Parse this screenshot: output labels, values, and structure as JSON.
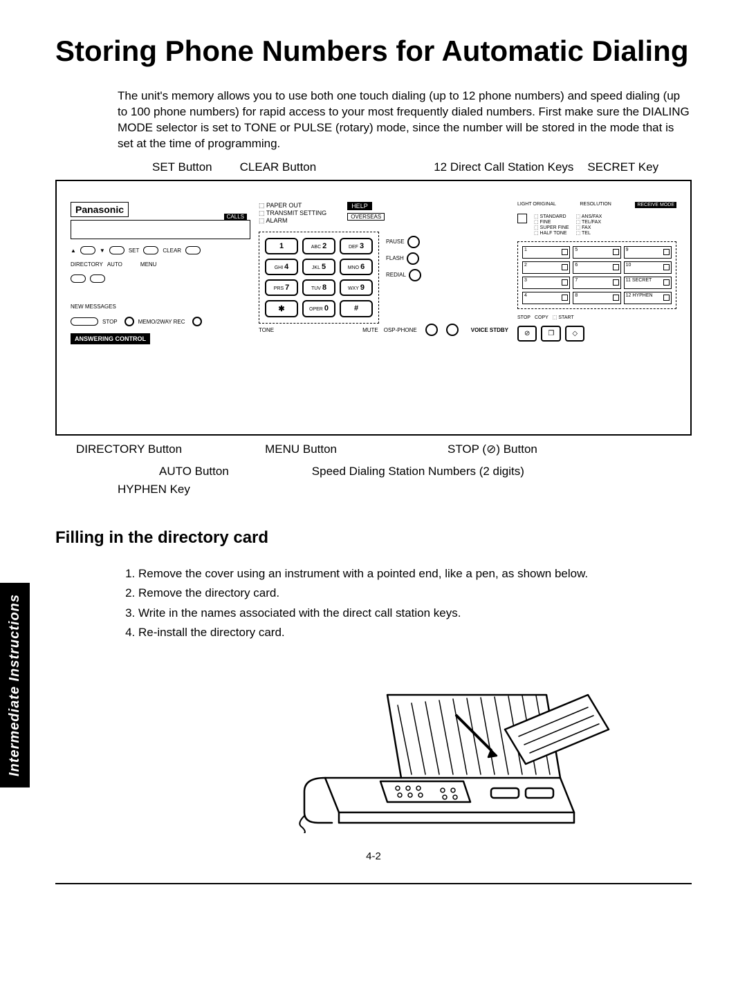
{
  "title": "Storing Phone Numbers for Automatic Dialing",
  "intro": "The unit's memory allows you to use both one touch dialing (up to 12 phone numbers) and speed dialing (up to 100 phone numbers) for rapid access to your most frequently dialed numbers. First make sure the DIALING MODE selector is set to TONE or PULSE (rotary) mode, since the number will be stored in the mode that is set at the time of programming.",
  "callouts_top": {
    "set": "SET Button",
    "clear": "CLEAR Button",
    "direct": "12 Direct Call Station Keys",
    "secret": "SECRET Key"
  },
  "panel": {
    "brand": "Panasonic",
    "lcd_label": "CALLS",
    "small_btn_row1": {
      "l": "▲",
      "r": "▼",
      "set": "SET",
      "clear": "CLEAR"
    },
    "small_btn_row2": {
      "dir": "DIRECTORY",
      "auto": "AUTO",
      "menu": "MENU"
    },
    "new_msgs": "NEW MESSAGES",
    "stop": "STOP",
    "memo": "MEMO/2WAY REC",
    "ans_ctrl": "ANSWERING CONTROL",
    "help": "HELP",
    "overseas": "OVERSEAS",
    "indicators": [
      "⬚ PAPER OUT",
      "⬚ TRANSMIT SETTING",
      "⬚ ALARM"
    ],
    "light_orig": "LIGHT ORIGINAL",
    "resolution": "RESOLUTION",
    "receive_mode": "RECEIVE MODE",
    "res_opts": [
      "⬚ STANDARD",
      "⬚ FINE",
      "⬚ SUPER FINE",
      "⬚ HALF TONE"
    ],
    "rm_opts": [
      "⬚ ANS/FAX",
      "⬚ TEL/FAX",
      "⬚ FAX",
      "⬚ TEL"
    ],
    "keypad": [
      {
        "t": "",
        "n": "1"
      },
      {
        "t": "ABC",
        "n": "2"
      },
      {
        "t": "DEF",
        "n": "3"
      },
      {
        "t": "GHI",
        "n": "4"
      },
      {
        "t": "JKL",
        "n": "5"
      },
      {
        "t": "MNO",
        "n": "6"
      },
      {
        "t": "PRS",
        "n": "7"
      },
      {
        "t": "TUV",
        "n": "8"
      },
      {
        "t": "WXY",
        "n": "9"
      },
      {
        "t": "",
        "n": "✱"
      },
      {
        "t": "OPER",
        "n": "0"
      },
      {
        "t": "",
        "n": "#"
      }
    ],
    "tone": "TONE",
    "side_keys": [
      "PAUSE",
      "FLASH",
      "REDIAL"
    ],
    "mute": "MUTE",
    "osp": "OSP-PHONE",
    "voice_stdby": "VOICE STDBY",
    "stations": [
      "1",
      "5",
      "9",
      "2",
      "6",
      "10",
      "3",
      "7",
      "11 SECRET",
      "4",
      "8",
      "12 HYPHEN"
    ],
    "ctrl": {
      "stop": "STOP",
      "copy": "COPY",
      "start": "⬚ START"
    }
  },
  "callouts_bottom": {
    "directory": "DIRECTORY Button",
    "auto": "AUTO Button",
    "menu": "MENU Button",
    "speed": "Speed Dialing Station Numbers (2 digits)",
    "stop": "STOP (⊘) Button",
    "hyphen": "HYPHEN Key"
  },
  "h2": "Filling in the directory card",
  "steps": [
    "Remove the cover using an instrument with a pointed end, like a pen, as shown below.",
    "Remove the directory card.",
    "Write in the names associated with the direct call station keys.",
    "Re-install the directory card."
  ],
  "page_num": "4-2",
  "side_tab": "Intermediate Instructions",
  "colors": {
    "text": "#000000",
    "bg": "#ffffff"
  }
}
